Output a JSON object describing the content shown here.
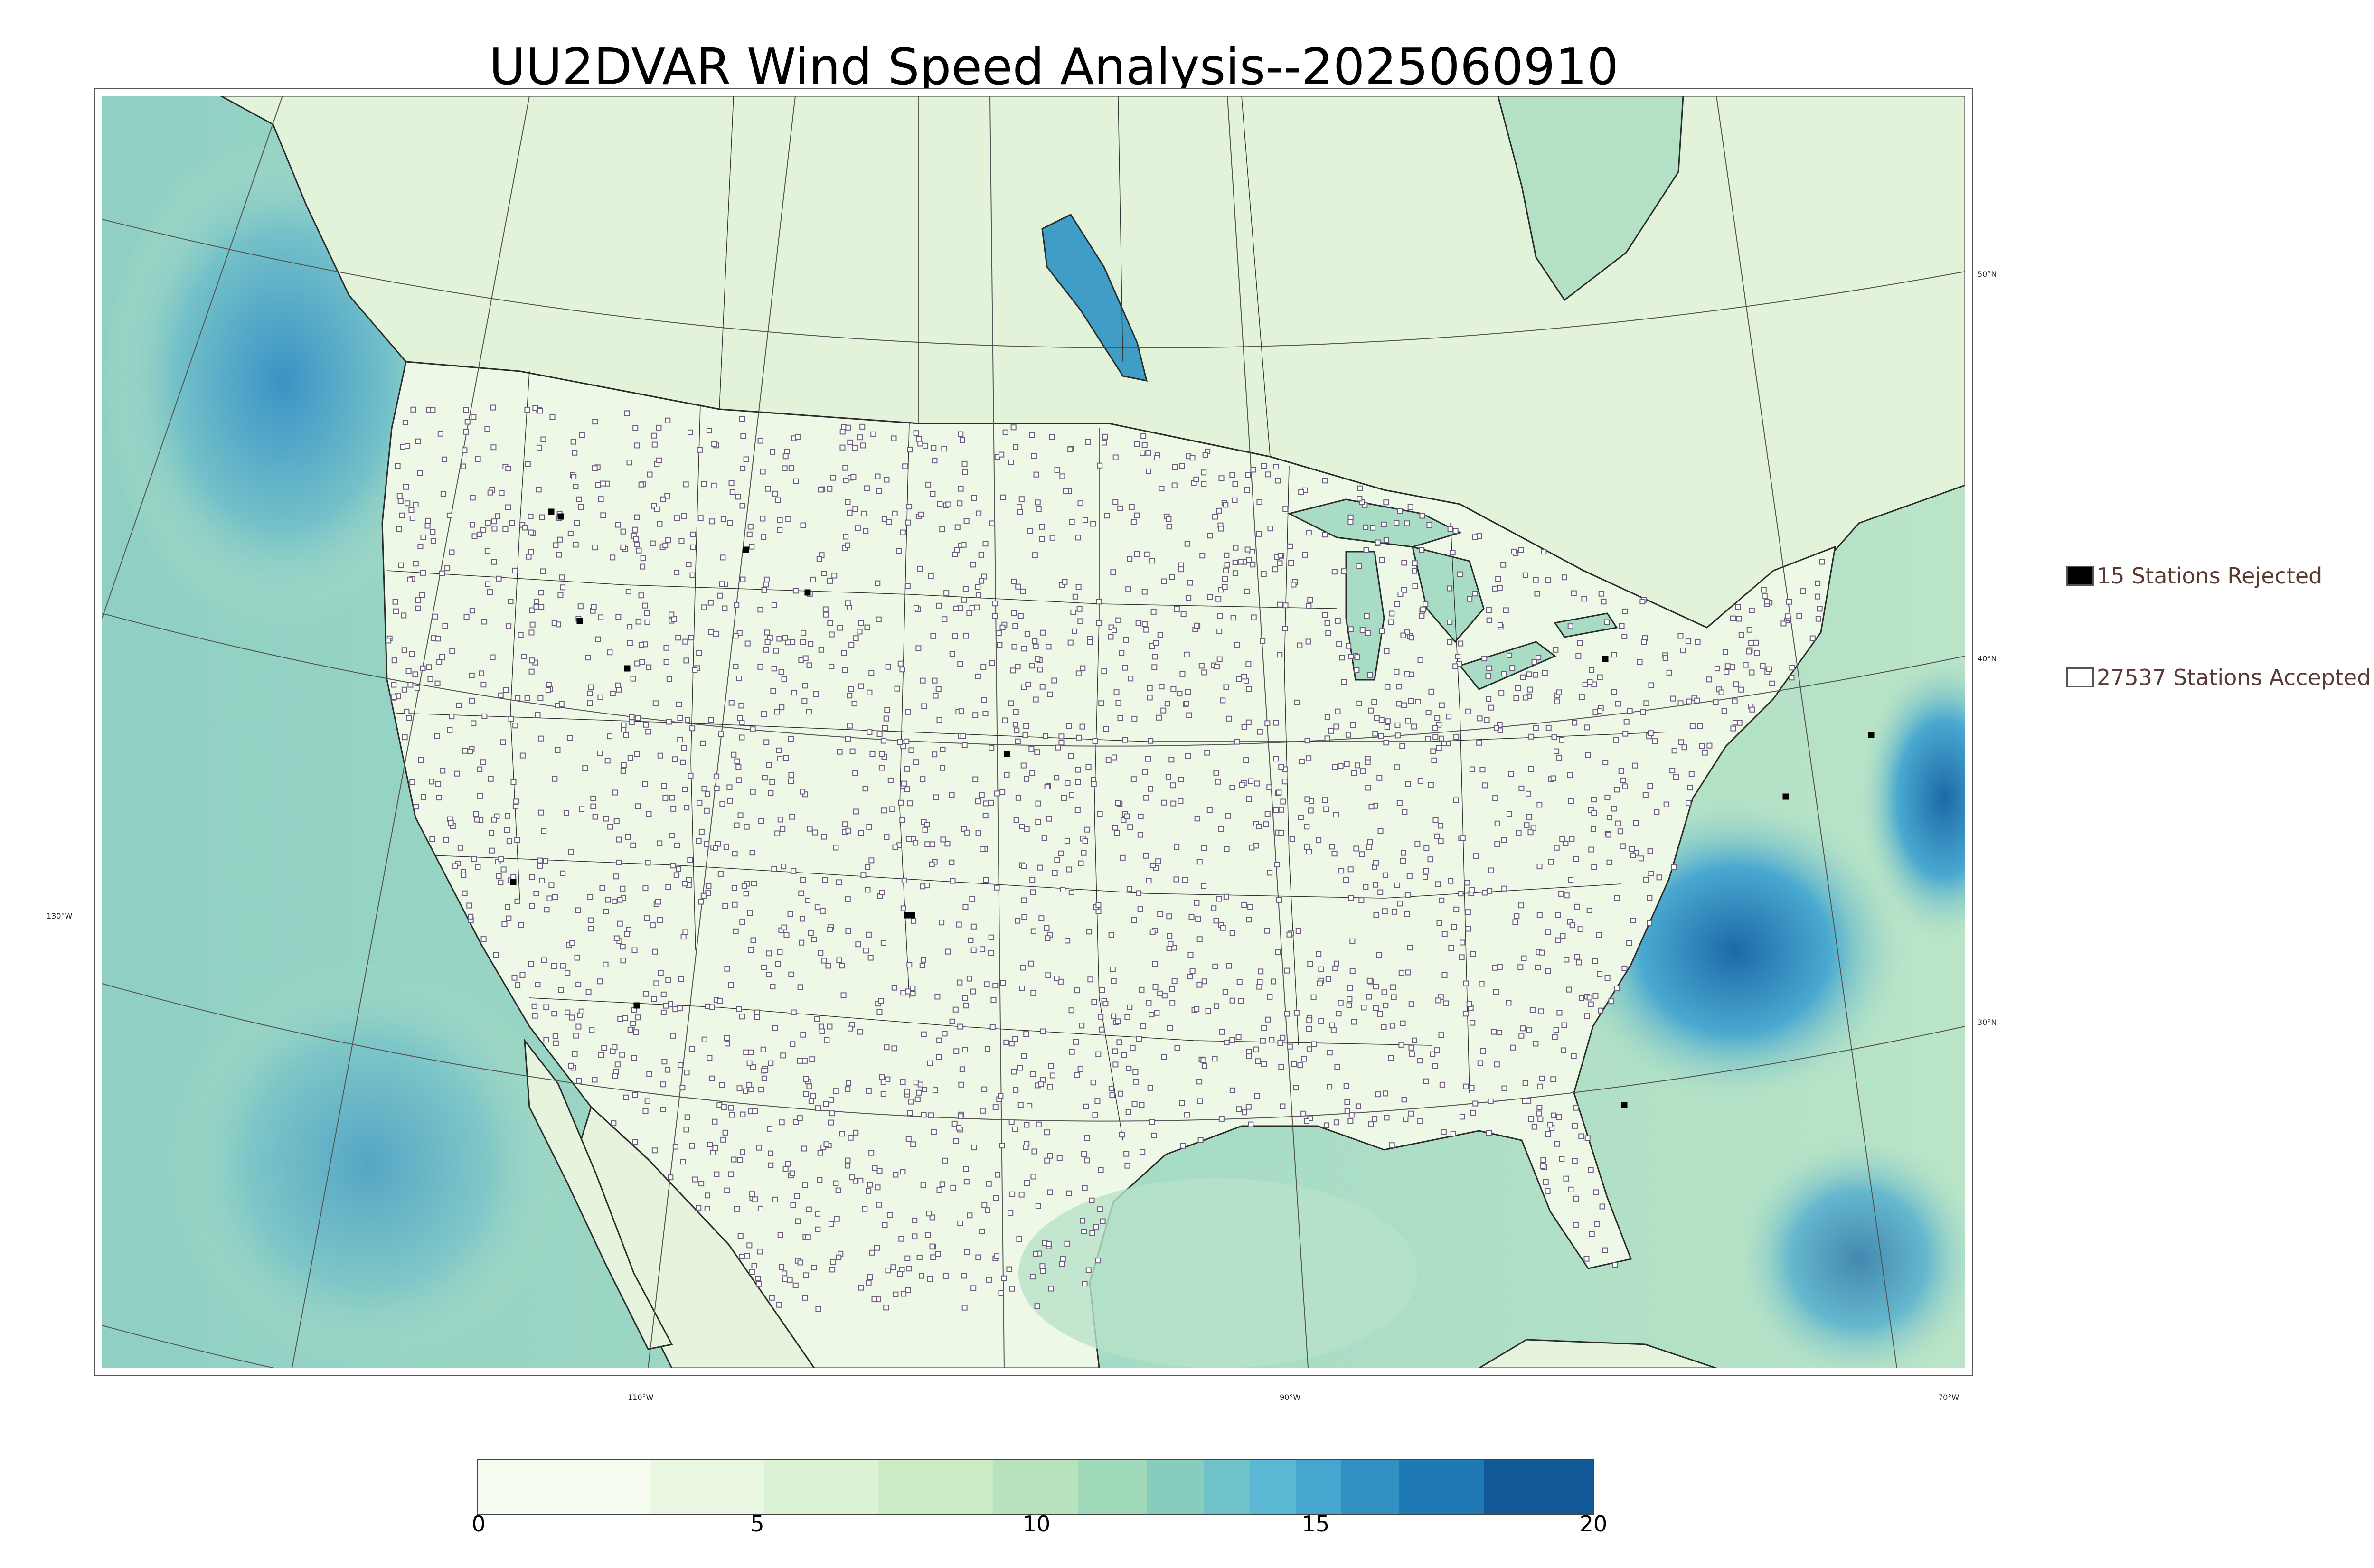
{
  "title": "UU2DVAR Wind Speed Analysis--2025060910",
  "map": {
    "land_color": "#eaf6e3",
    "ocean_color": "#9fd7c8",
    "strong_wind_color": "#2f8fc4",
    "boundary_color": "#2b2b2b",
    "station_color": "#6b5b7a",
    "coords": {
      "lat50": "50°N",
      "lat40": "40°N",
      "lat30": "30°N",
      "lon130": "130°W",
      "lon110": "110°W",
      "lon90": "90°W",
      "lon70": "70°W"
    }
  },
  "legend": {
    "rejected": {
      "label": "15 Stations Rejected",
      "color": "#000000"
    },
    "accepted": {
      "label": "27537 Stations Accepted",
      "color": "#ffffff"
    }
  },
  "colorbar": {
    "min": 0,
    "max": 20,
    "ticks": [
      "0",
      "5",
      "10",
      "15",
      "20"
    ],
    "colors": [
      "#f7fcf0",
      "#eaf7e3",
      "#dcf2d5",
      "#cbebc5",
      "#b7e3bc",
      "#a0d9b9",
      "#86cdbd",
      "#6fc2c8",
      "#5ab8d4",
      "#45a7d0",
      "#3191c3",
      "#1f79b5",
      "#125a97"
    ]
  }
}
